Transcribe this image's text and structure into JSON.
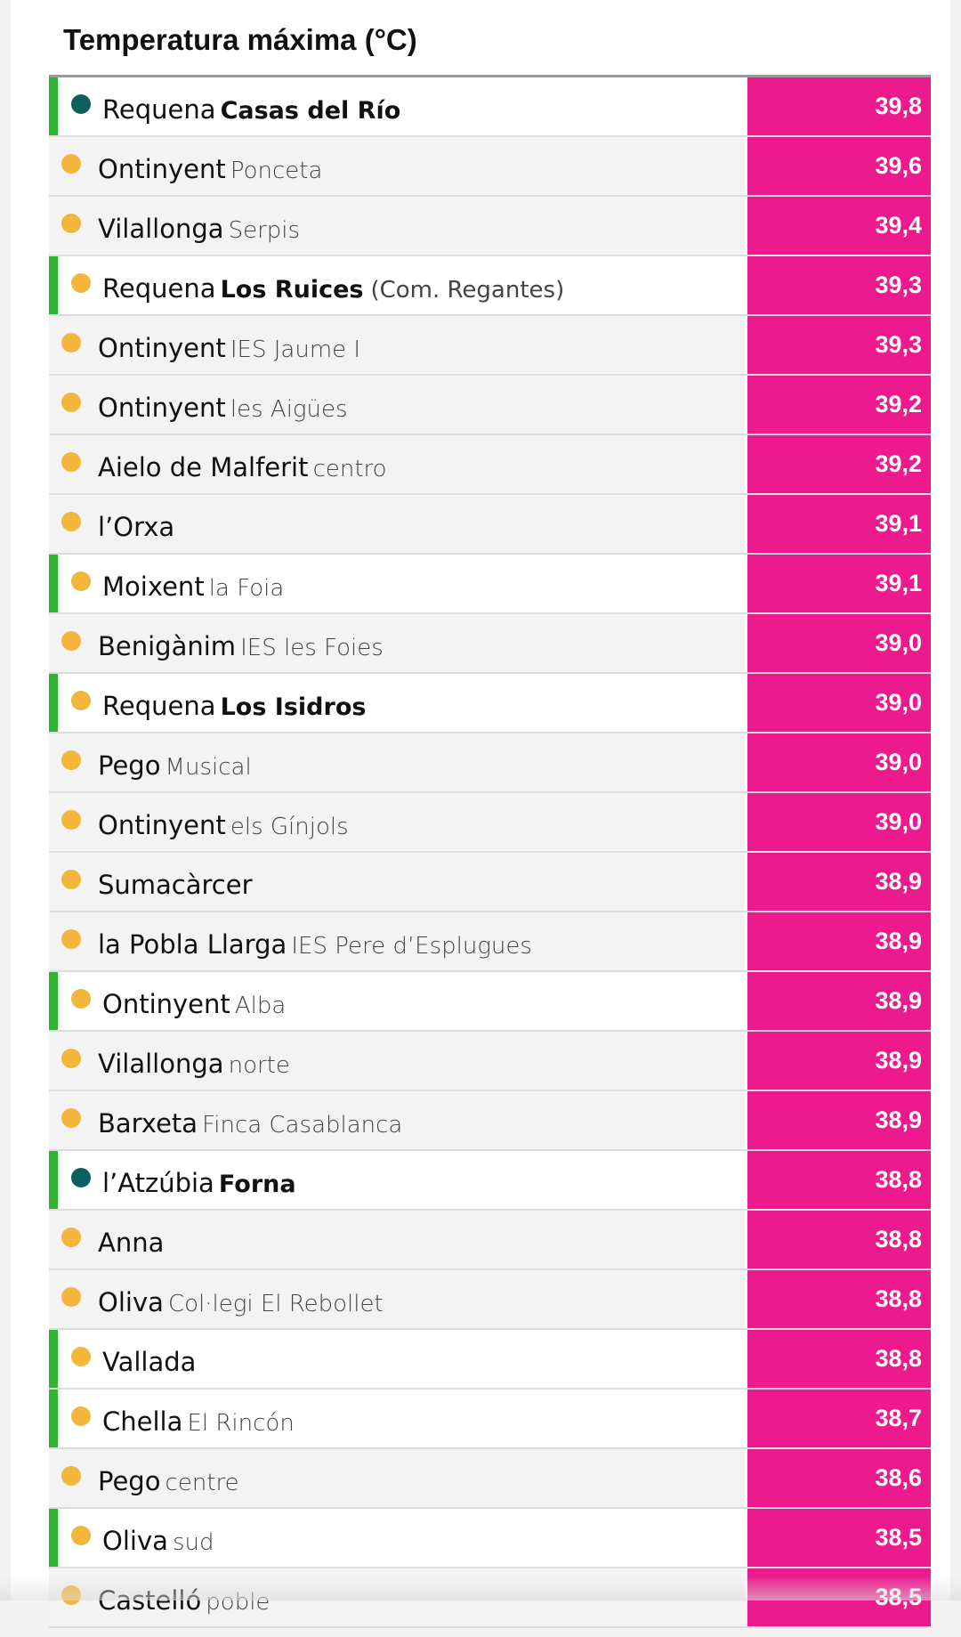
{
  "title": "Temperatura máxima (°C)",
  "colors": {
    "value_background": "#ec1a8c",
    "highlight_bar": "#2fb52f",
    "dot_yellow": "#f2b63d",
    "dot_teal": "#0e5e5a"
  },
  "rows": [
    {
      "town": "Requena",
      "location": "Casas del Río",
      "extra": "",
      "value": "39,8",
      "highlight": true,
      "bold_location": true,
      "dot": "teal-dot-icon"
    },
    {
      "town": "Ontinyent",
      "location": "Ponceta",
      "extra": "",
      "value": "39,6",
      "highlight": false,
      "bold_location": false,
      "dot": "sun-dot-icon"
    },
    {
      "town": "Vilallonga",
      "location": "Serpis",
      "extra": "",
      "value": "39,4",
      "highlight": false,
      "bold_location": false,
      "dot": "sun-dot-icon"
    },
    {
      "town": "Requena",
      "location": "Los Ruices",
      "extra": "(Com. Regantes)",
      "value": "39,3",
      "highlight": true,
      "bold_location": true,
      "dot": "sun-dot-icon"
    },
    {
      "town": "Ontinyent",
      "location": "IES Jaume I",
      "extra": "",
      "value": "39,3",
      "highlight": false,
      "bold_location": false,
      "dot": "sun-dot-icon"
    },
    {
      "town": "Ontinyent",
      "location": "les Aigües",
      "extra": "",
      "value": "39,2",
      "highlight": false,
      "bold_location": false,
      "dot": "sun-dot-icon"
    },
    {
      "town": "Aielo de Malferit",
      "location": "centro",
      "extra": "",
      "value": "39,2",
      "highlight": false,
      "bold_location": false,
      "dot": "sun-dot-icon"
    },
    {
      "town": "l’Orxa",
      "location": "",
      "extra": "",
      "value": "39,1",
      "highlight": false,
      "bold_location": false,
      "dot": "sun-dot-icon"
    },
    {
      "town": "Moixent",
      "location": "la Foia",
      "extra": "",
      "value": "39,1",
      "highlight": true,
      "bold_location": false,
      "dot": "sun-dot-icon"
    },
    {
      "town": "Benigànim",
      "location": "IES les Foies",
      "extra": "",
      "value": "39,0",
      "highlight": false,
      "bold_location": false,
      "dot": "sun-dot-icon"
    },
    {
      "town": "Requena",
      "location": "Los Isidros",
      "extra": "",
      "value": "39,0",
      "highlight": true,
      "bold_location": true,
      "dot": "sun-dot-icon"
    },
    {
      "town": "Pego",
      "location": "Musical",
      "extra": "",
      "value": "39,0",
      "highlight": false,
      "bold_location": false,
      "dot": "sun-dot-icon"
    },
    {
      "town": "Ontinyent",
      "location": "els Gínjols",
      "extra": "",
      "value": "39,0",
      "highlight": false,
      "bold_location": false,
      "dot": "sun-dot-icon"
    },
    {
      "town": "Sumacàrcer",
      "location": "",
      "extra": "",
      "value": "38,9",
      "highlight": false,
      "bold_location": false,
      "dot": "sun-dot-icon"
    },
    {
      "town": "la Pobla Llarga",
      "location": "IES Pere d’Esplugues",
      "extra": "",
      "value": "38,9",
      "highlight": false,
      "bold_location": false,
      "dot": "sun-dot-icon"
    },
    {
      "town": "Ontinyent",
      "location": "Alba",
      "extra": "",
      "value": "38,9",
      "highlight": true,
      "bold_location": false,
      "dot": "sun-dot-icon"
    },
    {
      "town": "Vilallonga",
      "location": "norte",
      "extra": "",
      "value": "38,9",
      "highlight": false,
      "bold_location": false,
      "dot": "sun-dot-icon"
    },
    {
      "town": "Barxeta",
      "location": "Finca Casablanca",
      "extra": "",
      "value": "38,9",
      "highlight": false,
      "bold_location": false,
      "dot": "sun-dot-icon"
    },
    {
      "town": "l’Atzúbia",
      "location": "Forna",
      "extra": "",
      "value": "38,8",
      "highlight": true,
      "bold_location": true,
      "dot": "teal-dot-icon"
    },
    {
      "town": "Anna",
      "location": "",
      "extra": "",
      "value": "38,8",
      "highlight": false,
      "bold_location": false,
      "dot": "sun-dot-icon"
    },
    {
      "town": "Oliva",
      "location": "Col·legi El Rebollet",
      "extra": "",
      "value": "38,8",
      "highlight": false,
      "bold_location": false,
      "dot": "sun-dot-icon"
    },
    {
      "town": "Vallada",
      "location": "",
      "extra": "",
      "value": "38,8",
      "highlight": true,
      "bold_location": false,
      "dot": "sun-dot-icon"
    },
    {
      "town": "Chella",
      "location": "El Rincón",
      "extra": "",
      "value": "38,7",
      "highlight": true,
      "bold_location": false,
      "dot": "sun-dot-icon"
    },
    {
      "town": "Pego",
      "location": "centre",
      "extra": "",
      "value": "38,6",
      "highlight": false,
      "bold_location": false,
      "dot": "sun-dot-icon"
    },
    {
      "town": "Oliva",
      "location": "sud",
      "extra": "",
      "value": "38,5",
      "highlight": true,
      "bold_location": false,
      "dot": "sun-dot-icon"
    },
    {
      "town": "Castelló",
      "location": "poble",
      "extra": "",
      "value": "38,5",
      "highlight": false,
      "bold_location": false,
      "dot": "sun-dot-icon"
    }
  ]
}
